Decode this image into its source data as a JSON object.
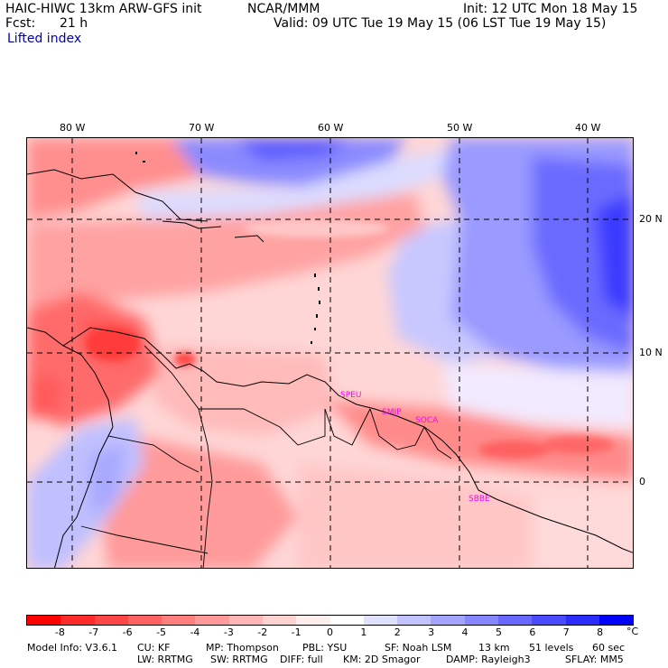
{
  "header": {
    "model_title": "HAIC-HIWC 13km ARW-GFS init",
    "org": "NCAR/MMM",
    "fcst_label": "Fcst:",
    "fcst_value": "21 h",
    "init": "Init: 12 UTC Mon 18 May 15",
    "valid": "Valid: 09 UTC Tue 19 May 15 (06 LST Tue 19 May 15)",
    "field": "Lifted index"
  },
  "map": {
    "lon_labels": [
      "80 W",
      "70 W",
      "60 W",
      "50 W",
      "40 W"
    ],
    "lat_labels": [
      "20 N",
      "10 N",
      "0"
    ],
    "stations": [
      "SPEU",
      "SMJP",
      "SOCA",
      "SBBE"
    ]
  },
  "colorbar": {
    "labels": [
      "-8",
      "-7",
      "-6",
      "-5",
      "-4",
      "-3",
      "-2",
      "-1",
      "0",
      "1",
      "2",
      "3",
      "4",
      "5",
      "6",
      "7",
      "8"
    ],
    "unit": "°C",
    "colors": [
      "#ff0000",
      "#ff2a2a",
      "#ff4646",
      "#ff6262",
      "#ff7e7e",
      "#ff9a9a",
      "#ffb6b6",
      "#ffd2d2",
      "#ffeeee",
      "#ffffff",
      "#e0e0ff",
      "#c2c2ff",
      "#a4a4ff",
      "#8686ff",
      "#6868ff",
      "#4a4aff",
      "#2c2cff",
      "#0000ff"
    ]
  },
  "footer": {
    "line1": [
      "Model Info: V3.6.1",
      "CU: KF",
      "MP: Thompson",
      "PBL: YSU",
      "SF: Noah LSM",
      "13 km",
      "51 levels",
      "60 sec"
    ],
    "line2": [
      "LW: RRTMG",
      "SW: RRTMG",
      "DIFF: full",
      "KM: 2D Smagor",
      "DAMP: Rayleigh3",
      "SFLAY: MM5"
    ]
  }
}
